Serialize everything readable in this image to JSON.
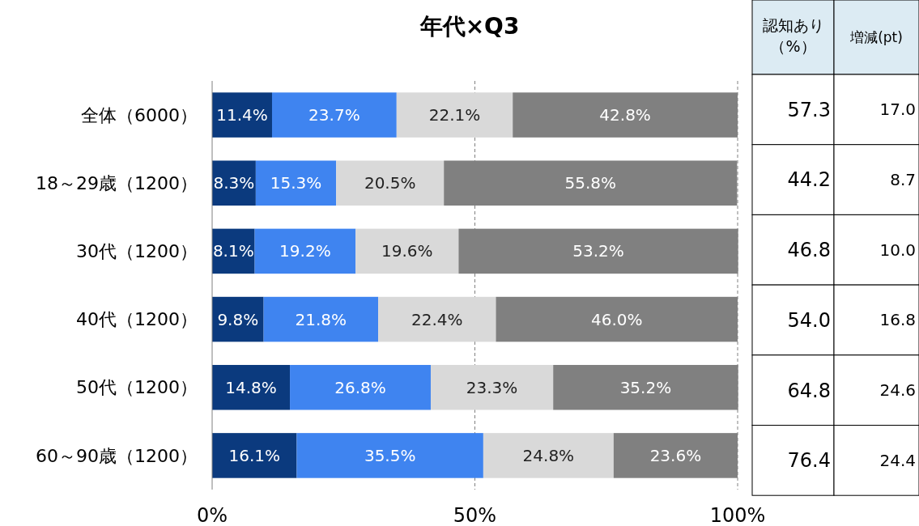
{
  "chart_data": [
    {
      "type": "bar",
      "title": "年代×Q3",
      "orientation": "horizontal",
      "stacked": true,
      "categories": [
        "全体（6000）",
        "18～29歳（1200）",
        "30代（1200）",
        "40代（1200）",
        "50代（1200）",
        "60～90歳（1200）"
      ],
      "series": [
        {
          "color": "#0b3a7e",
          "values": [
            11.4,
            8.3,
            8.1,
            9.8,
            14.8,
            16.1
          ],
          "value_labels": [
            "11.4%",
            "8.3%",
            "8.1%",
            "9.8%",
            "14.8%",
            "16.1%"
          ]
        },
        {
          "color": "#3f84f0",
          "values": [
            23.7,
            15.3,
            19.2,
            21.8,
            26.8,
            35.5
          ],
          "value_labels": [
            "23.7%",
            "15.3%",
            "19.2%",
            "21.8%",
            "26.8%",
            "35.5%"
          ]
        },
        {
          "color": "#d9d9d9",
          "values": [
            22.1,
            20.5,
            19.6,
            22.4,
            23.3,
            24.8
          ],
          "value_labels": [
            "22.1%",
            "20.5%",
            "19.6%",
            "22.4%",
            "23.3%",
            "24.8%"
          ]
        },
        {
          "color": "#808080",
          "values": [
            42.8,
            55.8,
            53.2,
            46.0,
            35.2,
            23.6
          ],
          "value_labels": [
            "42.8%",
            "55.8%",
            "53.2%",
            "46.0%",
            "35.2%",
            "23.6%"
          ]
        }
      ],
      "xlim": [
        0,
        100
      ],
      "xticks": [
        {
          "value": 0,
          "label": "0%"
        },
        {
          "value": 50,
          "label": "50%"
        },
        {
          "value": 100,
          "label": "100%"
        }
      ],
      "grid": "x",
      "line_style": "dashed"
    },
    {
      "type": "other",
      "categories": [
        "認知あり（%）",
        "増減(pt)"
      ],
      "cells": [
        [
          "57.3",
          "17.0"
        ],
        [
          "44.2",
          "8.7"
        ],
        [
          "46.8",
          "10.0"
        ],
        [
          "54.0",
          "16.8"
        ],
        [
          "64.8",
          "24.6"
        ],
        [
          "76.4",
          "24.4"
        ]
      ]
    }
  ]
}
